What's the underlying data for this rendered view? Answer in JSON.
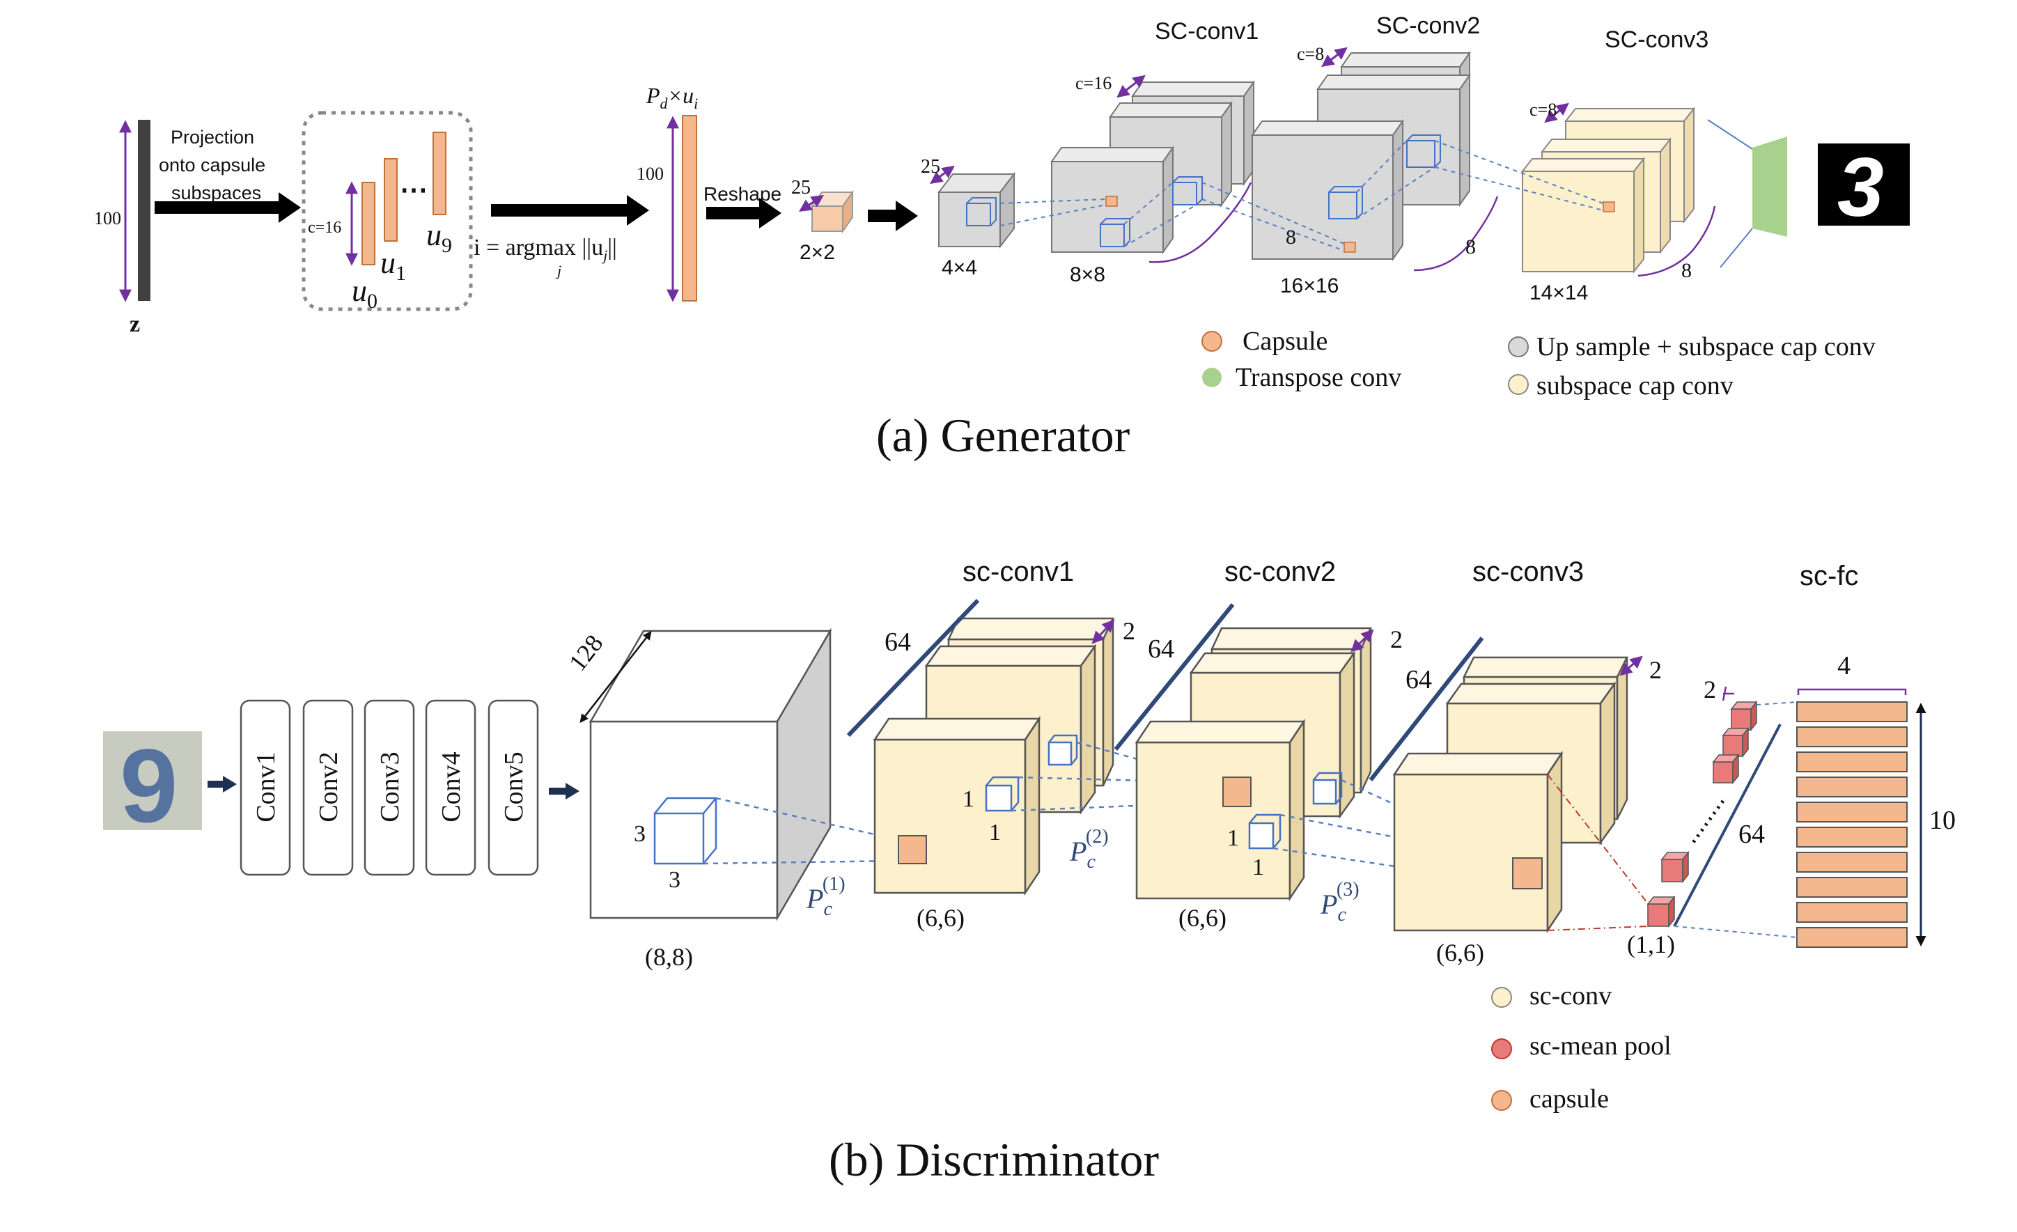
{
  "generator": {
    "caption": "(a)  Generator",
    "z_label": "z",
    "z_dim": "100",
    "projection": [
      "Projection",
      "onto capsule",
      "subspaces"
    ],
    "c_label": "c=16",
    "u0": "u",
    "u0_sub": "0",
    "u1": "u",
    "u1_sub": "1",
    "u9": "u",
    "u9_sub": "9",
    "dots": "⋯",
    "pd_label": "P",
    "pd_sub": "d",
    "pd_rest": "×u",
    "pd_rest_sub": "i",
    "argmax": "i = argmax ||u",
    "argmax_sub": "j",
    "argmax_end": "||",
    "argmax_under": "j",
    "vec_dim": "100",
    "reshape": "Reshape",
    "c25a": "25",
    "size_2x2": "2×2",
    "c25b": "25",
    "size_4x4": "4×4",
    "sc_conv1": "SC-conv1",
    "sc_conv2": "SC-conv2",
    "sc_conv3": "SC-conv3",
    "c16": "c=16",
    "c8a": "c=8",
    "c8b": "c=8",
    "size_8x8": "8×8",
    "size_16x16": "16×16",
    "size_14x14": "14×14",
    "eight_a": "8",
    "eight_b": "8",
    "eight_c": "8",
    "output_digit": "3",
    "legend": {
      "capsule": "Capsule",
      "transpose": "Transpose conv",
      "upsample": "Up sample + subspace cap conv",
      "subspace": "subspace cap conv"
    },
    "colors": {
      "capsule": "#f4b78e",
      "transpose": "#a9d18e",
      "gray_block": "#d9d9d9",
      "cream_block": "#fdf0cc",
      "arrow": "#7030a0"
    }
  },
  "discriminator": {
    "caption": "(b)  Discriminator",
    "input_digit": "9",
    "convs": [
      "Conv1",
      "Conv2",
      "Conv3",
      "Conv4",
      "Conv5"
    ],
    "depth_128": "128",
    "kernel_3a": "3",
    "kernel_3b": "3",
    "size_8_8": "(8,8)",
    "sc_conv1": "sc-conv1",
    "sc_conv2": "sc-conv2",
    "sc_conv3": "sc-conv3",
    "sc_fc": "sc-fc",
    "d64a": "64",
    "d64b": "64",
    "d64c": "64",
    "d64d": "64",
    "two_a": "2",
    "two_b": "2",
    "two_c": "2",
    "two_d": "2",
    "one_a": "1",
    "one_b": "1",
    "one_c": "1",
    "one_d": "1",
    "pc": "P",
    "pc_sub": "c",
    "pc1_sup": "(1)",
    "pc2_sup": "(2)",
    "pc3_sup": "(3)",
    "size_6_6a": "(6,6)",
    "size_6_6b": "(6,6)",
    "size_6_6c": "(6,6)",
    "size_1_1": "(1,1)",
    "fc_width": "4",
    "fc_height": "10",
    "legend": {
      "scconv": "sc-conv",
      "meanpool": "sc-mean pool",
      "capsule": "capsule"
    },
    "colors": {
      "cream_block": "#fdf0cc",
      "capsule": "#f4b78e",
      "meanpool": "#e87a7a",
      "fc_bar": "#f4b78e",
      "dashed": "#5b7fbf"
    }
  }
}
